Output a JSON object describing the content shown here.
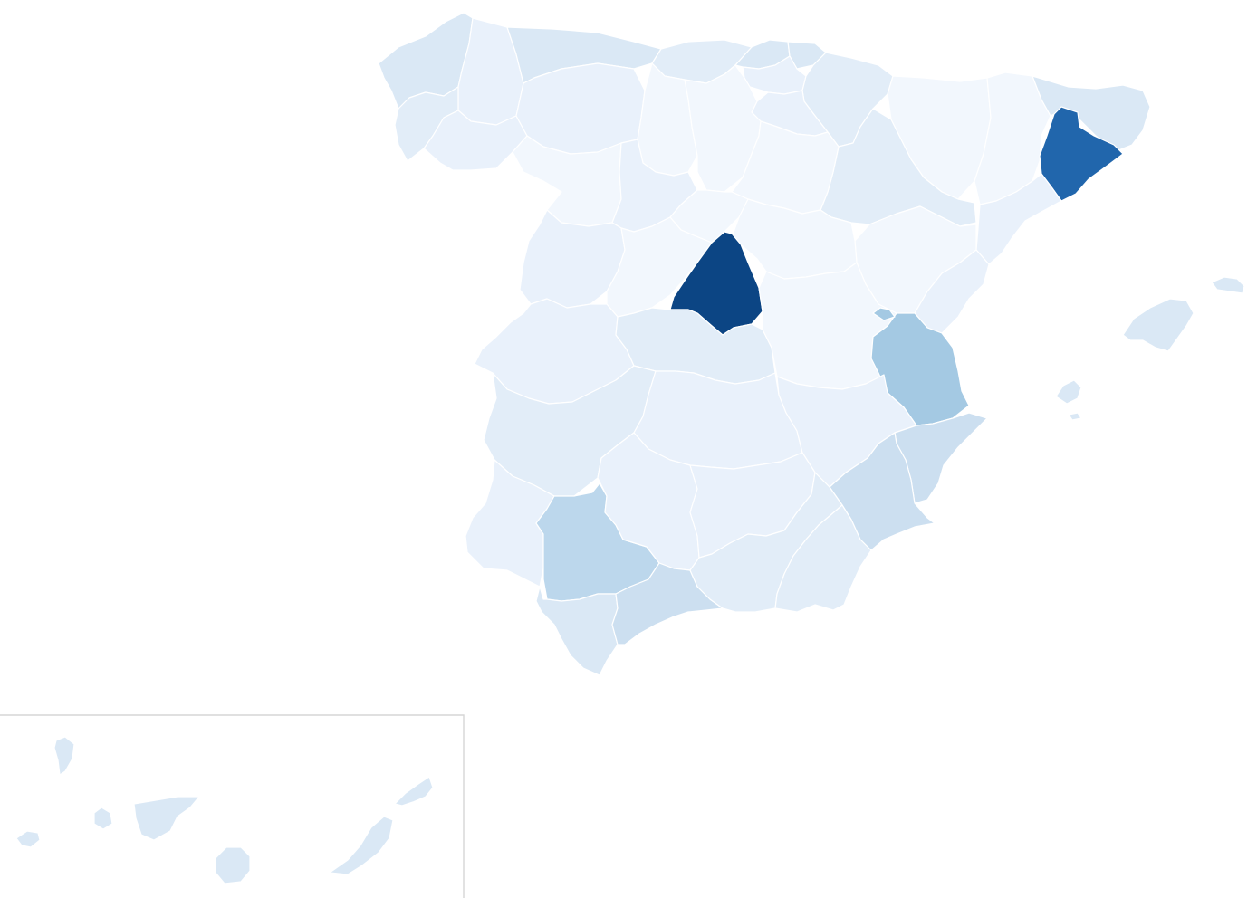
{
  "map": {
    "type": "choropleth",
    "country": "Spain",
    "unit": "provinces",
    "colors": {
      "c0": "#f2f7fd",
      "c1": "#e9f1fb",
      "c2": "#e2edf8",
      "c3": "#dae8f5",
      "c4": "#ccdff0",
      "c5": "#bcd7ec",
      "c6": "#a4c9e3",
      "c7": "#2166ac",
      "c8": "#0c4584"
    },
    "regions": [
      {
        "id": "a-coruna",
        "level": "c3"
      },
      {
        "id": "lugo",
        "level": "c1"
      },
      {
        "id": "pontevedra",
        "level": "c2"
      },
      {
        "id": "ourense",
        "level": "c1"
      },
      {
        "id": "asturias",
        "level": "c3"
      },
      {
        "id": "cantabria",
        "level": "c2"
      },
      {
        "id": "bizkaia",
        "level": "c3"
      },
      {
        "id": "gipuzkoa",
        "level": "c3"
      },
      {
        "id": "araba",
        "level": "c1"
      },
      {
        "id": "navarra",
        "level": "c2"
      },
      {
        "id": "la-rioja",
        "level": "c1"
      },
      {
        "id": "huesca",
        "level": "c0"
      },
      {
        "id": "lleida",
        "level": "c0"
      },
      {
        "id": "girona",
        "level": "c3"
      },
      {
        "id": "barcelona",
        "level": "c7"
      },
      {
        "id": "tarragona",
        "level": "c1"
      },
      {
        "id": "zaragoza",
        "level": "c2"
      },
      {
        "id": "teruel",
        "level": "c0"
      },
      {
        "id": "leon",
        "level": "c1"
      },
      {
        "id": "palencia",
        "level": "c0"
      },
      {
        "id": "burgos",
        "level": "c0"
      },
      {
        "id": "zamora",
        "level": "c0"
      },
      {
        "id": "valladolid",
        "level": "c1"
      },
      {
        "id": "soria",
        "level": "c0"
      },
      {
        "id": "segovia",
        "level": "c0"
      },
      {
        "id": "salamanca",
        "level": "c1"
      },
      {
        "id": "avila",
        "level": "c0"
      },
      {
        "id": "guadalajara",
        "level": "c0"
      },
      {
        "id": "madrid",
        "level": "c8"
      },
      {
        "id": "caceres",
        "level": "c1"
      },
      {
        "id": "toledo",
        "level": "c2"
      },
      {
        "id": "cuenca",
        "level": "c0"
      },
      {
        "id": "castellon",
        "level": "c1"
      },
      {
        "id": "valencia",
        "level": "c6"
      },
      {
        "id": "badajoz",
        "level": "c2"
      },
      {
        "id": "ciudad-real",
        "level": "c1"
      },
      {
        "id": "albacete",
        "level": "c1"
      },
      {
        "id": "alicante",
        "level": "c4"
      },
      {
        "id": "huelva",
        "level": "c1"
      },
      {
        "id": "sevilla",
        "level": "c5"
      },
      {
        "id": "cordoba",
        "level": "c1"
      },
      {
        "id": "jaen",
        "level": "c1"
      },
      {
        "id": "murcia",
        "level": "c4"
      },
      {
        "id": "cadiz",
        "level": "c3"
      },
      {
        "id": "malaga",
        "level": "c4"
      },
      {
        "id": "granada",
        "level": "c2"
      },
      {
        "id": "almeria",
        "level": "c2"
      },
      {
        "id": "mallorca",
        "level": "c3"
      },
      {
        "id": "menorca",
        "level": "c3"
      },
      {
        "id": "ibiza",
        "level": "c3"
      },
      {
        "id": "formentera",
        "level": "c3"
      },
      {
        "id": "la-palma",
        "level": "c3"
      },
      {
        "id": "el-hierro",
        "level": "c3"
      },
      {
        "id": "la-gomera",
        "level": "c3"
      },
      {
        "id": "tenerife",
        "level": "c3"
      },
      {
        "id": "gran-canaria",
        "level": "c3"
      },
      {
        "id": "fuerteventura",
        "level": "c3"
      },
      {
        "id": "lanzarote",
        "level": "c3"
      }
    ],
    "inset": {
      "id": "canary-islands-inset"
    }
  }
}
